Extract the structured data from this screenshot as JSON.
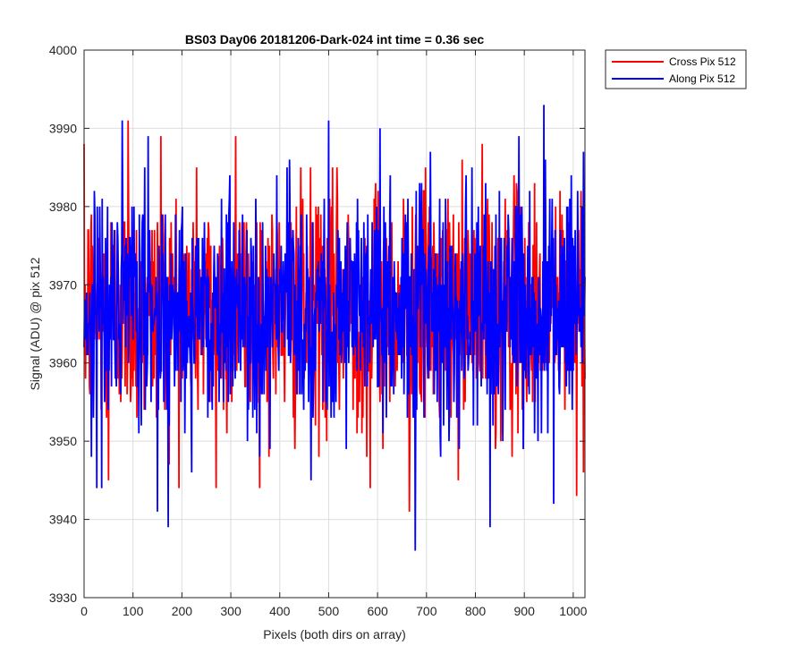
{
  "chart_data": {
    "type": "line",
    "title": "BS03 Day06 20181206-Dark-024 int time = 0.36 sec",
    "xlabel": "Pixels (both dirs on array)",
    "ylabel": "Signal (ADU) @ pix 512",
    "xlim": [
      0,
      1024
    ],
    "ylim": [
      3930,
      4000
    ],
    "xticks": [
      0,
      100,
      200,
      300,
      400,
      500,
      600,
      700,
      800,
      900,
      1000
    ],
    "yticks": [
      3930,
      3940,
      3950,
      3960,
      3970,
      3980,
      3990,
      4000
    ],
    "grid": true,
    "legend_position": "outside-top-right",
    "series": [
      {
        "name": "Cross Pix 512",
        "color": "#ff0000",
        "summary": {
          "mean": 3967,
          "min": 3941,
          "max": 3991
        },
        "extremes": [
          [
            50,
            3945
          ],
          [
            90,
            3991
          ],
          [
            157,
            3989
          ],
          [
            270,
            3944
          ],
          [
            310,
            3989
          ],
          [
            585,
            3944
          ],
          [
            665,
            3941
          ],
          [
            1007,
            3943
          ]
        ]
      },
      {
        "name": "Along Pix 512",
        "color": "#0000ff",
        "summary": {
          "mean": 3967,
          "min": 3936,
          "max": 3993
        },
        "extremes": [
          [
            15,
            3948
          ],
          [
            150,
            3941
          ],
          [
            500,
            3991
          ],
          [
            605,
            3990
          ],
          [
            677,
            3936
          ],
          [
            830,
            3939
          ],
          [
            940,
            3993
          ],
          [
            960,
            3942
          ]
        ]
      }
    ]
  }
}
